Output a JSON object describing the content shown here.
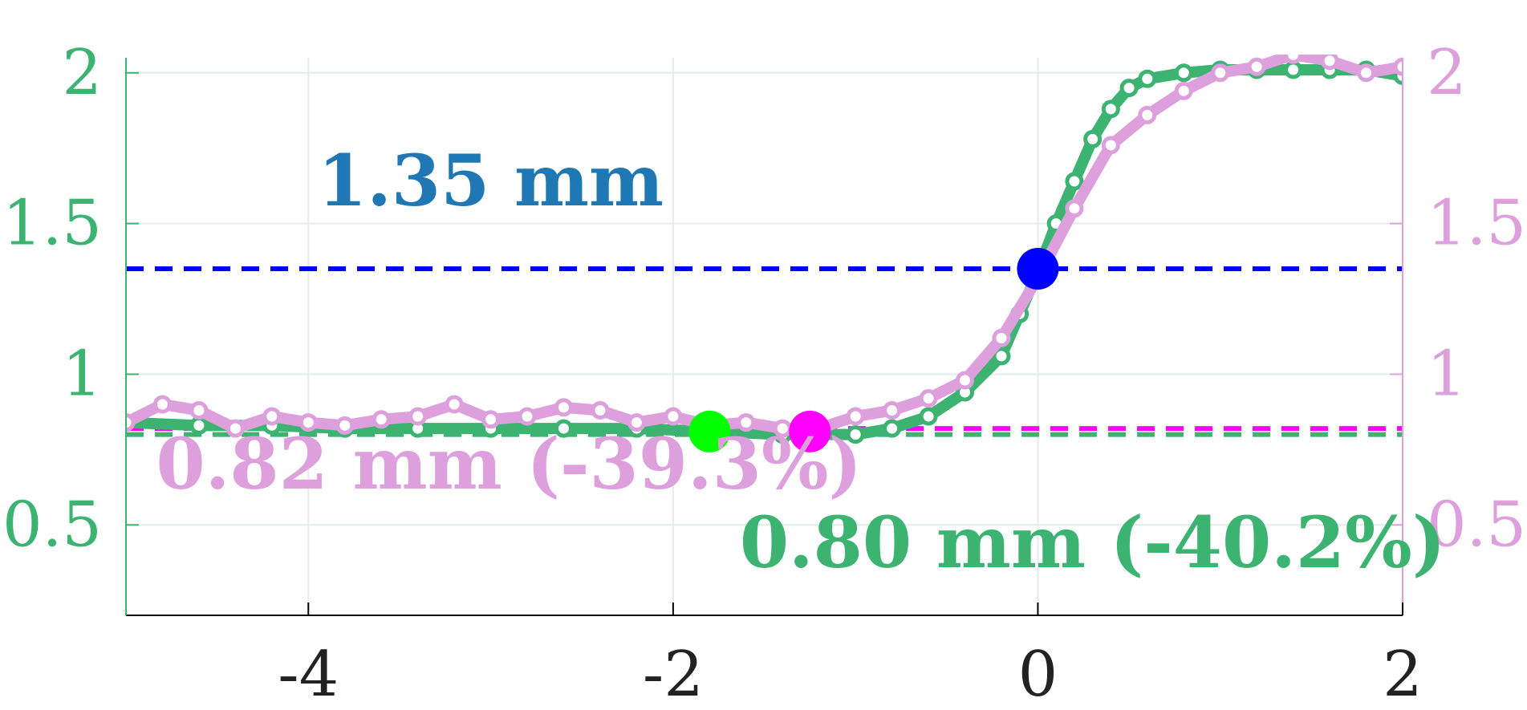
{
  "chart_data": {
    "type": "line",
    "title": "",
    "xlabel": "",
    "ylabel_left": "",
    "ylabel_right": "",
    "xlim": [
      -5,
      2
    ],
    "ylim_left": [
      0.2,
      2.05
    ],
    "ylim_right": [
      0.2,
      2.05
    ],
    "grid": true,
    "x_ticks": [
      {
        "value": -4,
        "label": "-4"
      },
      {
        "value": -2,
        "label": "-2"
      },
      {
        "value": 0,
        "label": "0"
      },
      {
        "value": 2,
        "label": "2"
      }
    ],
    "y_ticks_left": [
      {
        "value": 0.5,
        "label": "0.5"
      },
      {
        "value": 1,
        "label": "1"
      },
      {
        "value": 1.5,
        "label": "1.5"
      },
      {
        "value": 2,
        "label": "2"
      }
    ],
    "y_ticks_right": [
      {
        "value": 0.5,
        "label": "0.5"
      },
      {
        "value": 1,
        "label": "1"
      },
      {
        "value": 1.5,
        "label": "1.5"
      },
      {
        "value": 2,
        "label": "2"
      }
    ],
    "colors": {
      "green": "#3cb371",
      "pink": "#dda0dd",
      "blue_dash": "#0000ff",
      "magenta_dash": "#ff00ff",
      "green_dash": "#3cb371",
      "blue_text": "#1f77b4",
      "grid": "#e3ece8",
      "axis": "#000000"
    },
    "series": [
      {
        "axis": "left",
        "color": "#3cb371",
        "x": [
          -5.0,
          -4.6,
          -4.2,
          -3.8,
          -3.4,
          -3.0,
          -2.6,
          -2.2,
          -1.8,
          -1.4,
          -1.0,
          -0.8,
          -0.6,
          -0.4,
          -0.2,
          -0.1,
          0.0,
          0.1,
          0.2,
          0.3,
          0.4,
          0.5,
          0.6,
          0.8,
          1.0,
          1.2,
          1.4,
          1.6,
          1.8,
          2.0
        ],
        "y": [
          0.84,
          0.83,
          0.83,
          0.82,
          0.82,
          0.82,
          0.82,
          0.82,
          0.81,
          0.8,
          0.8,
          0.82,
          0.86,
          0.94,
          1.06,
          1.2,
          1.34,
          1.5,
          1.64,
          1.78,
          1.88,
          1.95,
          1.98,
          2.0,
          2.01,
          2.01,
          2.01,
          2.01,
          2.01,
          1.99
        ]
      },
      {
        "axis": "right",
        "color": "#dda0dd",
        "x": [
          -5.0,
          -4.8,
          -4.6,
          -4.4,
          -4.2,
          -4.0,
          -3.8,
          -3.6,
          -3.4,
          -3.2,
          -3.0,
          -2.8,
          -2.6,
          -2.4,
          -2.2,
          -2.0,
          -1.8,
          -1.6,
          -1.4,
          -1.2,
          -1.0,
          -0.8,
          -0.6,
          -0.4,
          -0.2,
          0.0,
          0.2,
          0.4,
          0.6,
          0.8,
          1.0,
          1.2,
          1.4,
          1.6,
          1.8,
          2.0
        ],
        "y": [
          0.84,
          0.9,
          0.88,
          0.82,
          0.86,
          0.84,
          0.83,
          0.85,
          0.86,
          0.9,
          0.85,
          0.86,
          0.89,
          0.88,
          0.84,
          0.86,
          0.83,
          0.84,
          0.82,
          0.82,
          0.86,
          0.88,
          0.92,
          0.98,
          1.12,
          1.32,
          1.55,
          1.76,
          1.86,
          1.94,
          2.0,
          2.02,
          2.06,
          2.04,
          2.0,
          2.02
        ]
      }
    ],
    "reference_lines": [
      {
        "y": 1.35,
        "color": "#0000ff",
        "style": "dashed"
      },
      {
        "y": 0.82,
        "color": "#ff00ff",
        "style": "dashed"
      },
      {
        "y": 0.8,
        "color": "#3cb371",
        "style": "dashed"
      }
    ],
    "markers": [
      {
        "x": 0.0,
        "y": 1.35,
        "color": "#0000ff"
      },
      {
        "x": -1.8,
        "y": 0.81,
        "color": "#00ff00"
      },
      {
        "x": -1.25,
        "y": 0.81,
        "color": "#ff00ff"
      }
    ],
    "annotations": [
      {
        "text": "1.35 mm",
        "color": "#1f77b4",
        "x": -3.0,
        "y": 1.56
      },
      {
        "text": "0.82 mm (-39.3%)",
        "color": "#dda0dd",
        "x": -2.9,
        "y": 0.62
      },
      {
        "text": "0.80 mm (-40.2%)",
        "color": "#3cb371",
        "x": 0.3,
        "y": 0.36
      }
    ]
  }
}
